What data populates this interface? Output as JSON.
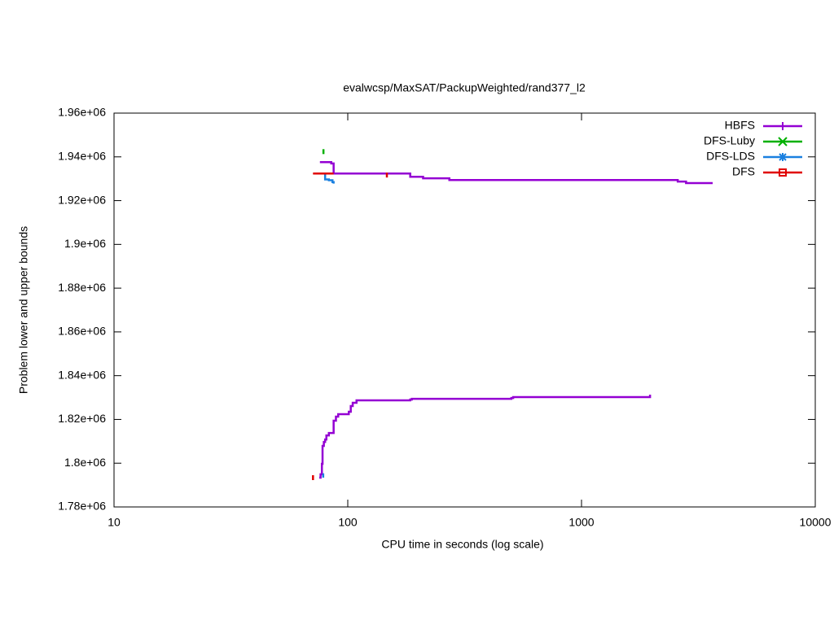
{
  "chart_data": {
    "type": "line",
    "title": "evalwcsp/MaxSAT/PackupWeighted/rand377_l2",
    "x_label": "CPU time in seconds (log scale)",
    "y_label": "Problem lower and upper bounds",
    "x_log": true,
    "steps": true,
    "legend": "top-right",
    "xlim": [
      10,
      10000
    ],
    "xticks": [
      10,
      100,
      1000,
      10000
    ],
    "ylim": [
      1780000,
      1960000
    ],
    "yticks": [
      {
        "value": 1780000,
        "label": "1.78e+06"
      },
      {
        "value": 1800000,
        "label": "1.8e+06"
      },
      {
        "value": 1820000,
        "label": "1.82e+06"
      },
      {
        "value": 1840000,
        "label": "1.84e+06"
      },
      {
        "value": 1860000,
        "label": "1.86e+06"
      },
      {
        "value": 1880000,
        "label": "1.88e+06"
      },
      {
        "value": 1900000,
        "label": "1.9e+06"
      },
      {
        "value": 1920000,
        "label": "1.92e+06"
      },
      {
        "value": 1940000,
        "label": "1.94e+06"
      },
      {
        "value": 1960000,
        "label": "1.96e+06"
      }
    ],
    "series": [
      {
        "name": "HBFS",
        "color": "#9400d3",
        "marker": "plus",
        "x": [
          76,
          85,
          87,
          185,
          210,
          272,
          2580,
          2800,
          3640,
          null,
          75.5,
          76.5,
          77.5,
          78,
          79,
          80,
          81,
          83,
          87,
          89,
          91,
          101,
          103,
          105,
          109,
          185,
          188,
          501,
          510,
          1964,
          1964
        ],
        "values": [
          1937600,
          1937000,
          1932400,
          1930900,
          1930200,
          1929400,
          1928700,
          1928000,
          1928000,
          null,
          1793400,
          1794900,
          1799700,
          1807900,
          1809700,
          1810800,
          1812700,
          1813800,
          1819400,
          1821300,
          1822400,
          1823500,
          1826100,
          1827600,
          1828700,
          1829100,
          1829400,
          1829800,
          1830200,
          1830200,
          1831300
        ]
      },
      {
        "name": "DFS-Luby",
        "color": "#00b000",
        "marker": "x",
        "x": [
          78.7
        ],
        "values": [
          1942400
        ]
      },
      {
        "name": "DFS-LDS",
        "color": "#1a80e0",
        "marker": "star",
        "x": [
          78.7,
          80,
          83,
          86,
          87,
          null,
          78,
          78.5
        ],
        "values": [
          1932400,
          1929700,
          1929300,
          1928500,
          1927800,
          null,
          1794900,
          1793400
        ]
      },
      {
        "name": "DFS",
        "color": "#e00000",
        "marker": "square",
        "x": [
          71,
          87,
          null,
          147,
          null,
          71
        ],
        "values": [
          1932400,
          1932400,
          null,
          1931700,
          null,
          1793400
        ]
      }
    ]
  }
}
